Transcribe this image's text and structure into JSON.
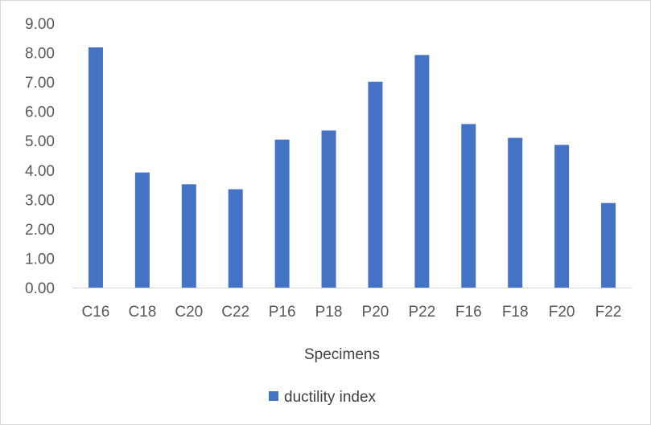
{
  "chart_data": {
    "type": "bar",
    "categories": [
      "C16",
      "C18",
      "C20",
      "C22",
      "P16",
      "P18",
      "P20",
      "P22",
      "F16",
      "F18",
      "F20",
      "F22"
    ],
    "series": [
      {
        "name": "ductility index",
        "values": [
          8.18,
          3.92,
          3.52,
          3.35,
          5.04,
          5.35,
          7.01,
          7.92,
          5.57,
          5.1,
          4.86,
          2.88
        ]
      }
    ],
    "title": "",
    "xlabel": "Specimens",
    "ylabel": "",
    "ylim": [
      0,
      9
    ],
    "yticks": [
      "0.00",
      "1.00",
      "2.00",
      "3.00",
      "4.00",
      "5.00",
      "6.00",
      "7.00",
      "8.00",
      "9.00"
    ],
    "grid": false,
    "legend": "bottom",
    "colors": {
      "bar": "#4472c4",
      "axis": "#d9d9d9"
    }
  }
}
